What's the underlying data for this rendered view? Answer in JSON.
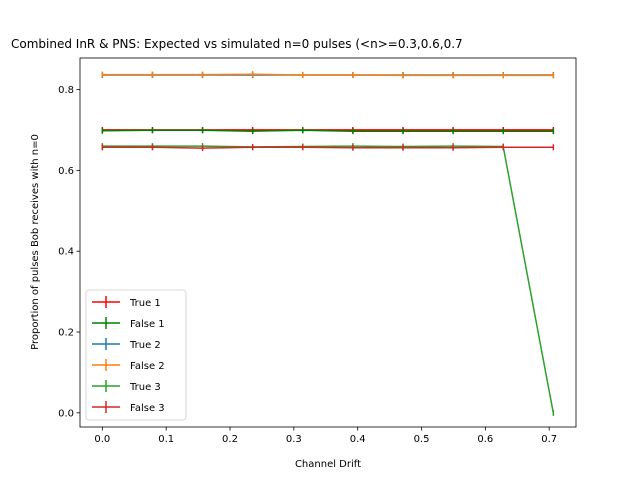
{
  "chart_data": {
    "type": "line",
    "title": "Combined InR & PNS: Expected vs simulated n=0 pulses (<n>=0.3,0.6,0.7",
    "xlabel": "Channel Drift",
    "ylabel": "Proportion of pulses Bob receives with n=0",
    "xlim": [
      -0.035,
      0.742
    ],
    "ylim": [
      -0.035,
      0.878
    ],
    "xticks": [
      0.0,
      0.1,
      0.2,
      0.3,
      0.4,
      0.5,
      0.6,
      0.7
    ],
    "yticks": [
      0.0,
      0.2,
      0.4,
      0.6,
      0.8
    ],
    "x": [
      0.0,
      0.0785,
      0.157,
      0.2355,
      0.314,
      0.3925,
      0.471,
      0.5495,
      0.628,
      0.7065
    ],
    "grid": false,
    "legend_position": "lower left",
    "series": [
      {
        "name": "True 1",
        "color": "#ff0000",
        "values": [
          0.7,
          0.7,
          0.7,
          0.7,
          0.7,
          0.7,
          0.7,
          0.7,
          0.7,
          0.7
        ]
      },
      {
        "name": "False 1",
        "color": "#008000",
        "values": [
          0.698,
          0.699,
          0.699,
          0.697,
          0.699,
          0.697,
          0.697,
          0.697,
          0.697,
          0.697
        ]
      },
      {
        "name": "True 2",
        "color": "#1f77b4",
        "values": [
          0.836,
          0.836,
          0.836,
          0.836,
          0.836,
          0.836,
          0.836,
          0.836,
          0.836,
          0.836
        ]
      },
      {
        "name": "False 2",
        "color": "#ff7f0e",
        "values": [
          0.837,
          0.837,
          0.837,
          0.838,
          0.836,
          0.836,
          0.835,
          0.835,
          0.835,
          0.835
        ]
      },
      {
        "name": "True 3",
        "color": "#2ca02c",
        "values": [
          0.66,
          0.66,
          0.66,
          0.658,
          0.659,
          0.66,
          0.659,
          0.66,
          0.659,
          0.0
        ]
      },
      {
        "name": "False 3",
        "color": "#d62728",
        "values": [
          0.657,
          0.657,
          0.655,
          0.657,
          0.657,
          0.656,
          0.656,
          0.656,
          0.657,
          0.657
        ]
      }
    ]
  }
}
